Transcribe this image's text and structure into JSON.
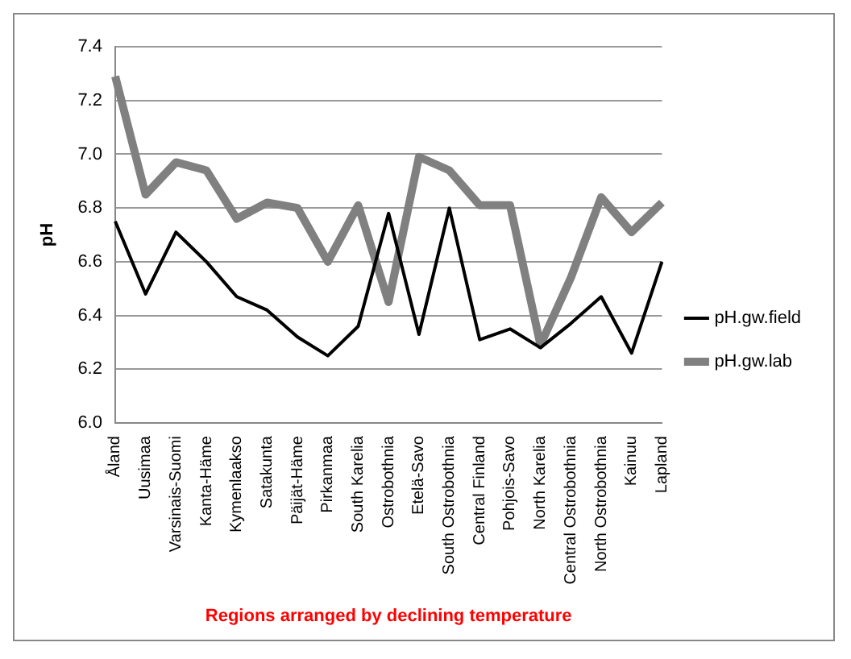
{
  "chart_data": {
    "type": "line",
    "xlabel": "Regions arranged by declining temperature",
    "ylabel": "pH",
    "categories": [
      "Åland",
      "Uusimaa",
      "Varsinais-Suomi",
      "Kanta-Häme",
      "Kymenlaakso",
      "Satakunta",
      "Päijät-Häme",
      "Pirkanmaa",
      "South Karelia",
      "Ostrobothnia",
      "Etelä-Savo",
      "South Ostrobothnia",
      "Central Finland",
      "Pohjois-Savo",
      "North Karelia",
      "Central Ostrobothnia",
      "North Ostrobothnia",
      "Kainuu",
      "Lapland"
    ],
    "series": [
      {
        "name": "pH.gw.field",
        "color": "#000000",
        "values": [
          6.75,
          6.48,
          6.71,
          6.6,
          6.47,
          6.42,
          6.32,
          6.25,
          6.36,
          6.78,
          6.33,
          6.8,
          6.31,
          6.35,
          6.28,
          6.37,
          6.47,
          6.26,
          6.6
        ]
      },
      {
        "name": "pH.gw.lab",
        "color": "#808080",
        "values": [
          7.29,
          6.85,
          6.97,
          6.94,
          6.76,
          6.82,
          6.8,
          6.6,
          6.81,
          6.45,
          6.99,
          6.94,
          6.81,
          6.81,
          6.29,
          6.54,
          6.84,
          6.71,
          6.82
        ]
      }
    ],
    "ylim": [
      6.0,
      7.4
    ],
    "yticks": [
      {
        "value": 6,
        "label": "6.0"
      },
      6.2,
      6.4,
      6.6,
      6.8,
      {
        "value": 7,
        "label": "7.0"
      },
      7.2,
      7.4
    ],
    "grid": "y",
    "legend": "right",
    "marker": "none",
    "line_style": "solid"
  }
}
